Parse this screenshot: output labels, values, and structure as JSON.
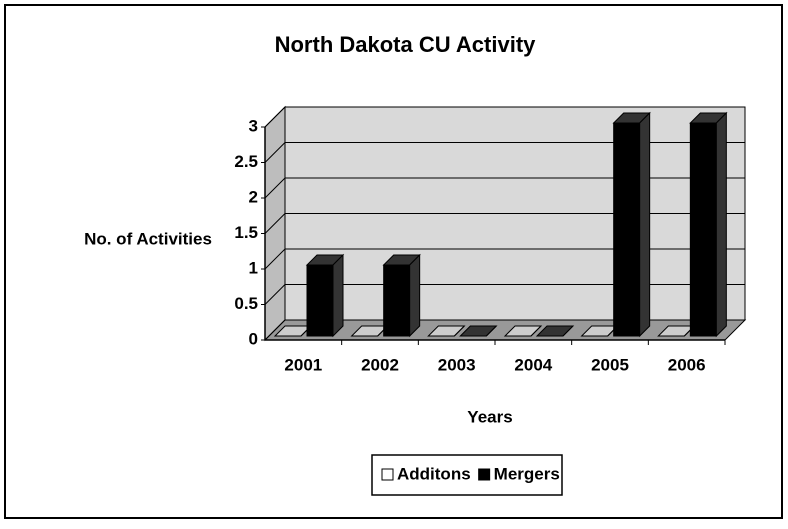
{
  "chart_data": {
    "type": "bar3d",
    "title": "North Dakota CU Activity",
    "xlabel": "Years",
    "ylabel": "No. of Activities",
    "categories": [
      "2001",
      "2002",
      "2003",
      "2004",
      "2005",
      "2006"
    ],
    "series": [
      {
        "name": "Additons",
        "color": "#ffffff",
        "values": [
          0,
          0,
          0,
          0,
          0,
          0
        ]
      },
      {
        "name": "Mergers",
        "color": "#000000",
        "values": [
          1,
          1,
          0,
          0,
          3,
          3
        ]
      }
    ],
    "ylim": [
      0,
      3
    ],
    "yticks": [
      0,
      0.5,
      1,
      1.5,
      2,
      2.5,
      3
    ],
    "grid": true,
    "legend": "bottom"
  }
}
